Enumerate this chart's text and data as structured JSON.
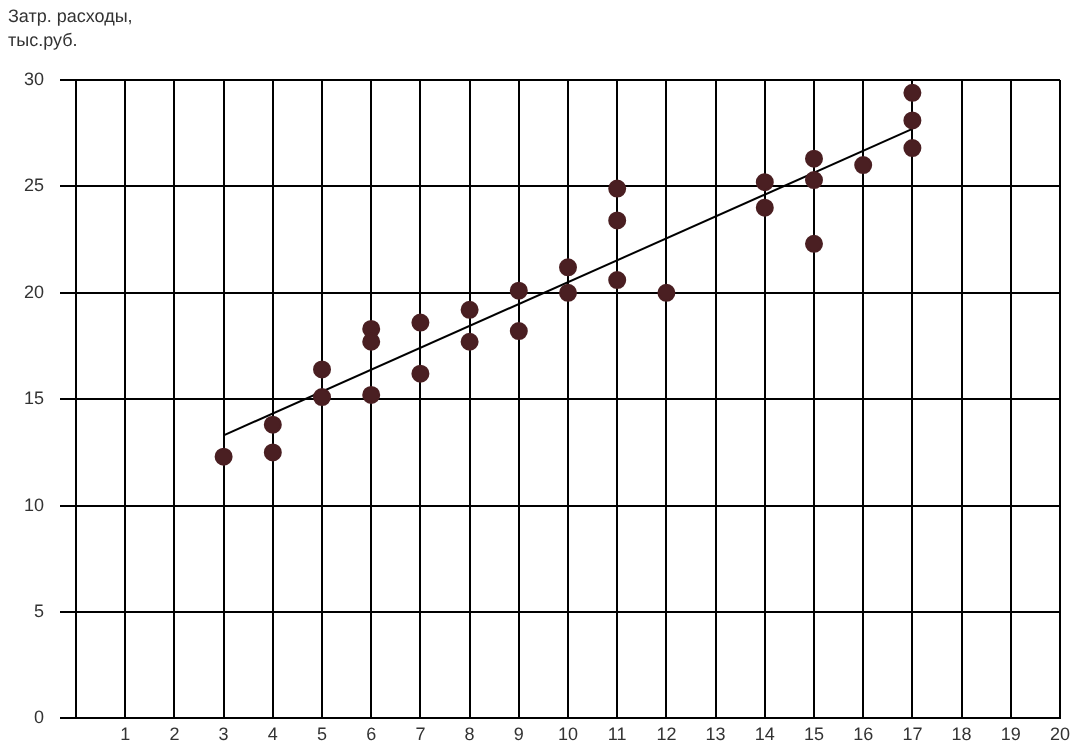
{
  "chart_data": {
    "type": "scatter",
    "ylabel": "Затр. расходы, тыс.руб.",
    "xlim": [
      0,
      20
    ],
    "xticks": [
      1,
      2,
      3,
      4,
      5,
      6,
      7,
      8,
      9,
      10,
      11,
      12,
      13,
      14,
      15,
      16,
      17,
      18,
      19,
      20
    ],
    "ylim": [
      0,
      30
    ],
    "yticks": [
      0,
      5,
      10,
      15,
      20,
      25,
      30
    ],
    "grid": true,
    "legend": false,
    "marker": "circle",
    "series": [
      {
        "color": "#4a1f22",
        "x": [
          3,
          4,
          4,
          5,
          5,
          6,
          6,
          6,
          7,
          7,
          8,
          8,
          9,
          9,
          10,
          10,
          11,
          11,
          11,
          12,
          14,
          14,
          15,
          15,
          15,
          16,
          17,
          17,
          17
        ],
        "values": [
          12.3,
          13.8,
          12.5,
          16.4,
          15.1,
          18.3,
          17.7,
          15.2,
          18.6,
          16.2,
          19.2,
          17.7,
          20.1,
          18.2,
          21.2,
          20.0,
          24.9,
          23.4,
          20.6,
          20.0,
          25.2,
          24.0,
          26.3,
          25.3,
          22.3,
          26.0,
          29.4,
          28.1,
          26.8
        ]
      },
      {
        "type": "line",
        "color": "#000000",
        "x": [
          3,
          17
        ],
        "values": [
          13.3,
          27.7
        ],
        "marker": "none"
      }
    ]
  }
}
